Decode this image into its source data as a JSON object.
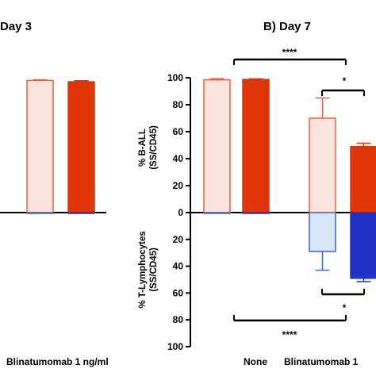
{
  "colors": {
    "light_red_fill": "#fbe3de",
    "red_edge": "#e8623f",
    "dark_red": "#e03506",
    "light_blue_fill": "#d9e6f7",
    "blue_edge": "#3d64c6",
    "dark_blue": "#1f32c5",
    "axis": "#000000"
  },
  "chart_data": [
    {
      "type": "bar",
      "title": "Day 3",
      "categories": [
        "Blinatumomab 1 ng/ml"
      ],
      "ylim": [
        0,
        100
      ],
      "series": [
        {
          "values_b_all_upper": [
            98
          ],
          "errors_upper": [
            0.5
          ],
          "values_t_lower": [
            0.5
          ],
          "errors_lower": [
            0
          ]
        },
        {
          "values_b_all_upper": [
            97
          ],
          "errors_upper": [
            0.8
          ],
          "values_t_lower": [
            0.5
          ],
          "errors_lower": [
            0
          ]
        }
      ],
      "grid": false
    },
    {
      "type": "bar",
      "title": "B) Day 7",
      "categories": [
        "None",
        "Blinatumomab 1"
      ],
      "ylabel_upper": [
        "% B-ALL",
        "(SS/CD45)"
      ],
      "ylabel_lower": [
        "% T-Lymphocytes",
        "(SS/CD45)"
      ],
      "yticks_upper": [
        "100",
        "80",
        "60",
        "40",
        "20",
        "0"
      ],
      "yticks_lower": [
        "20",
        "40",
        "60",
        "80",
        "100"
      ],
      "ylim_upper": [
        0,
        100
      ],
      "ylim_lower": [
        0,
        100
      ],
      "grid": false,
      "groups": [
        {
          "category": "None",
          "bars": [
            {
              "style": "light",
              "upper": 98.5,
              "upper_err": 0.8,
              "lower": 0.5,
              "lower_err": 0
            },
            {
              "style": "dark",
              "upper": 98.7,
              "upper_err": 0.5,
              "lower": 0.5,
              "lower_err": 0
            }
          ]
        },
        {
          "category": "Blinatumomab 1",
          "bars": [
            {
              "style": "light",
              "upper": 70,
              "upper_err": 15,
              "lower": 29,
              "lower_err": 14
            },
            {
              "style": "dark",
              "upper": 49,
              "upper_err": 2.5,
              "lower": 49,
              "lower_err": 2.5
            }
          ]
        }
      ],
      "significance": [
        {
          "label": "****",
          "position": "top"
        },
        {
          "label": "*",
          "position": "upper-inner"
        },
        {
          "label": "*",
          "position": "lower-inner"
        },
        {
          "label": "****",
          "position": "bottom"
        }
      ]
    }
  ]
}
